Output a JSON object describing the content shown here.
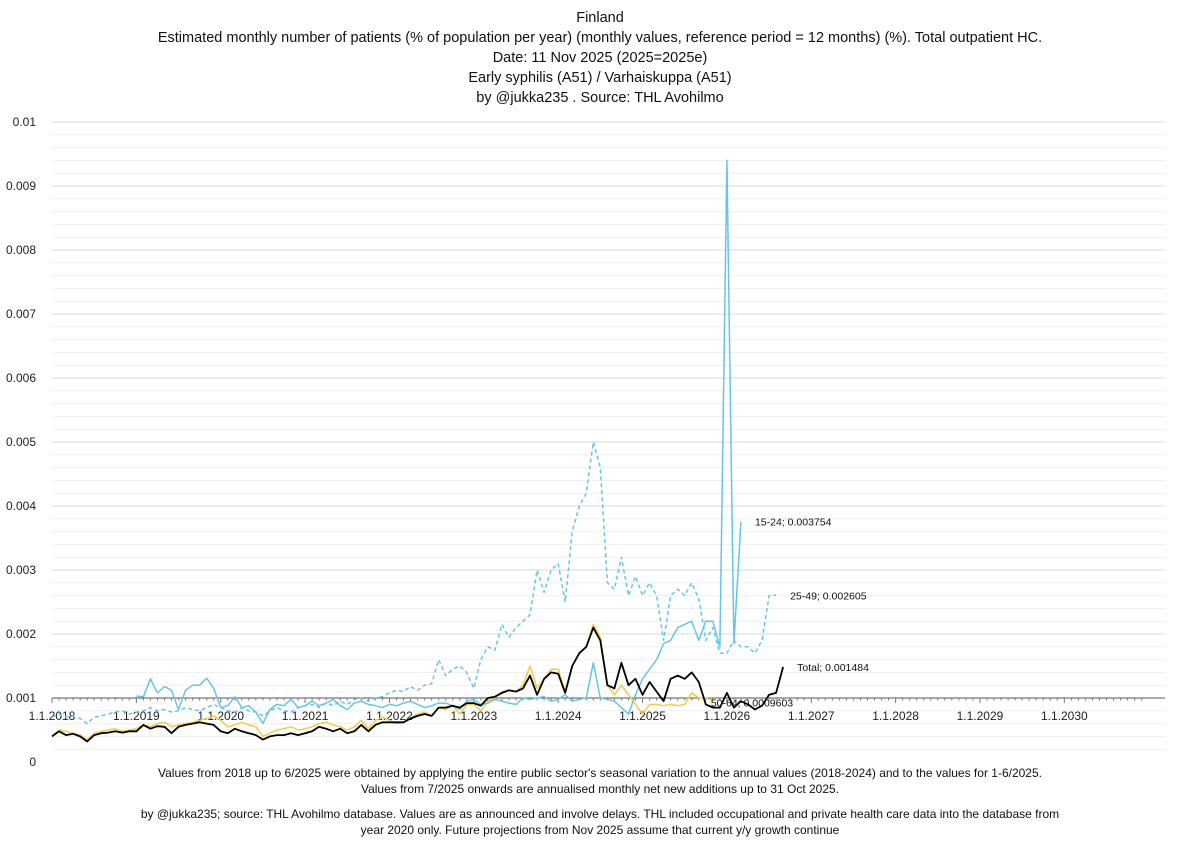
{
  "chart_data": {
    "type": "line",
    "title_lines": [
      "Finland",
      "Estimated monthly number of patients  (% of population per year) (monthly values, reference period = 12 months) (%). Total outpatient HC.",
      "Date: 11 Nov 2025 (2025=2025e)",
      "Early syphilis (A51) / Varhaiskuppa (A51)",
      "by @jukka235 . Source: THL Avohilmo"
    ],
    "ylim": [
      0,
      0.01
    ],
    "y_ticks": [
      "0",
      "0.001",
      "0.002",
      "0.003",
      "0.004",
      "0.005",
      "0.006",
      "0.007",
      "0.008",
      "0.009",
      "0.01"
    ],
    "x_ticks": [
      "1.1.2018",
      "1.1.2019",
      "1.1.2020",
      "1.1.2021",
      "1.1.2022",
      "1.1.2023",
      "1.1.2024",
      "1.1.2025",
      "1.1.2026",
      "1.1.2027",
      "1.1.2028",
      "1.1.2029",
      "1.1.2030"
    ],
    "x_start": "1.1.2018",
    "months_span": 155,
    "series": [
      {
        "name": "15-24",
        "color": "#66c5e6",
        "dash": "solid",
        "start_month": 12,
        "values": [
          0.00103,
          0.00102,
          0.0013,
          0.00108,
          0.00118,
          0.00112,
          0.00082,
          0.00112,
          0.0012,
          0.0012,
          0.00131,
          0.00115,
          0.00085,
          0.00088,
          0.00102,
          0.00085,
          0.00088,
          0.00078,
          0.0006,
          0.00082,
          0.0009,
          0.00088,
          0.00098,
          0.00085,
          0.00088,
          0.00095,
          0.00088,
          0.00092,
          0.00098,
          0.00088,
          0.00082,
          0.00092,
          0.00095,
          0.0009,
          0.00088,
          0.00085,
          0.0009,
          0.00088,
          0.00092,
          0.00095,
          0.0009,
          0.00085,
          0.00088,
          0.00092,
          0.00092,
          0.00088,
          0.00082,
          0.00095,
          0.00098,
          0.0009,
          0.00092,
          0.00098,
          0.00095,
          0.00092,
          0.0009,
          0.001,
          0.00098,
          0.001,
          0.00102,
          0.00095,
          0.00098,
          0.00105,
          0.00095,
          0.00098,
          0.001,
          0.00155,
          0.001,
          0.00098,
          0.00095,
          0.00085,
          0.00075,
          0.00105,
          0.0013,
          0.00145,
          0.0016,
          0.00185,
          0.0019,
          0.0021,
          0.00215,
          0.0022,
          0.0019,
          0.0022,
          0.0022,
          0.0018,
          0.0094,
          0.00185,
          0.003754
        ]
      },
      {
        "name": "25-49",
        "color": "#66c5e6",
        "dash": "dashed",
        "start_month": 0,
        "values": [
          0.0007,
          0.00075,
          0.0007,
          0.00072,
          0.00068,
          0.0006,
          0.0007,
          0.00072,
          0.00075,
          0.00078,
          0.0008,
          0.00075,
          0.00078,
          0.0008,
          0.00085,
          0.0008,
          0.00082,
          0.00078,
          0.0008,
          0.00085,
          0.00082,
          0.0008,
          0.00085,
          0.0009,
          0.00085,
          0.0008,
          0.00078,
          0.00085,
          0.0008,
          0.00078,
          0.00072,
          0.0008,
          0.00085,
          0.0008,
          0.00078,
          0.00085,
          0.00088,
          0.0009,
          0.00085,
          0.00092,
          0.00088,
          0.00095,
          0.0009,
          0.00098,
          0.001,
          0.00095,
          0.001,
          0.00102,
          0.00108,
          0.00112,
          0.0011,
          0.00118,
          0.00112,
          0.0012,
          0.00122,
          0.0016,
          0.00135,
          0.00145,
          0.0015,
          0.0014,
          0.00115,
          0.0016,
          0.0018,
          0.00175,
          0.00215,
          0.00195,
          0.0021,
          0.0022,
          0.0023,
          0.003,
          0.00265,
          0.003,
          0.0031,
          0.0025,
          0.0036,
          0.004,
          0.0042,
          0.005,
          0.0046,
          0.0028,
          0.0027,
          0.0032,
          0.0026,
          0.0029,
          0.0026,
          0.0028,
          0.0026,
          0.0019,
          0.0026,
          0.0027,
          0.0026,
          0.0028,
          0.00255,
          0.0019,
          0.0021,
          0.0017,
          0.0017,
          0.0019,
          0.0018,
          0.0018,
          0.0017,
          0.0019,
          0.0026,
          0.002605
        ]
      },
      {
        "name": "50-64",
        "color": "#f2cc44",
        "dash": "solid",
        "start_month": 0,
        "values": [
          0.0004,
          0.0005,
          0.00048,
          0.00045,
          0.00042,
          0.00035,
          0.00045,
          0.00048,
          0.0005,
          0.00052,
          0.00048,
          0.0005,
          0.00052,
          0.00058,
          0.00055,
          0.0006,
          0.00062,
          0.00055,
          0.00058,
          0.0006,
          0.00062,
          0.00065,
          0.00068,
          0.00072,
          0.00065,
          0.00055,
          0.00058,
          0.00062,
          0.00058,
          0.00055,
          0.0004,
          0.00045,
          0.0005,
          0.00052,
          0.00055,
          0.0005,
          0.00052,
          0.00055,
          0.0006,
          0.00062,
          0.00058,
          0.00055,
          0.0005,
          0.00055,
          0.00065,
          0.00052,
          0.00065,
          0.0007,
          0.00065,
          0.0006,
          0.00062,
          0.00068,
          0.00075,
          0.00078,
          0.00072,
          0.00085,
          0.00082,
          0.00088,
          0.00075,
          0.0009,
          0.0009,
          0.0008,
          0.00095,
          0.001,
          0.0011,
          0.00112,
          0.0011,
          0.0012,
          0.0015,
          0.00115,
          0.0013,
          0.00145,
          0.00145,
          0.0011,
          0.0015,
          0.0017,
          0.0018,
          0.00215,
          0.00195,
          0.0012,
          0.00105,
          0.0012,
          0.00105,
          0.0009,
          0.00075,
          0.0009,
          0.0009,
          0.00088,
          0.0009,
          0.00088,
          0.0009,
          0.00108,
          0.001,
          0.001,
          0.0009603
        ]
      },
      {
        "name": "Total",
        "color": "#000000",
        "dash": "solid",
        "start_month": 0,
        "values": [
          0.0004,
          0.00048,
          0.00042,
          0.00044,
          0.0004,
          0.00032,
          0.00042,
          0.00045,
          0.00046,
          0.00048,
          0.00046,
          0.00048,
          0.00048,
          0.00058,
          0.00052,
          0.00056,
          0.00055,
          0.00045,
          0.00055,
          0.00058,
          0.0006,
          0.00062,
          0.0006,
          0.00058,
          0.00048,
          0.00045,
          0.00052,
          0.00048,
          0.00045,
          0.00042,
          0.00035,
          0.0004,
          0.00042,
          0.00042,
          0.00045,
          0.00042,
          0.00045,
          0.00048,
          0.00055,
          0.00052,
          0.00048,
          0.00052,
          0.00045,
          0.00048,
          0.00058,
          0.00048,
          0.00058,
          0.00062,
          0.00062,
          0.00062,
          0.00062,
          0.00068,
          0.00072,
          0.00075,
          0.00072,
          0.00085,
          0.00085,
          0.00088,
          0.00085,
          0.00092,
          0.00092,
          0.00088,
          0.001,
          0.00102,
          0.00108,
          0.00112,
          0.0011,
          0.00115,
          0.00135,
          0.00105,
          0.0013,
          0.0014,
          0.00138,
          0.00108,
          0.0015,
          0.0017,
          0.0018,
          0.0021,
          0.0019,
          0.0012,
          0.00115,
          0.00155,
          0.0012,
          0.0013,
          0.00105,
          0.00125,
          0.0011,
          0.00095,
          0.0013,
          0.00135,
          0.0013,
          0.0014,
          0.00125,
          0.0009,
          0.00085,
          0.00085,
          0.00108,
          0.00085,
          0.00095,
          0.0009,
          0.00082,
          0.00088,
          0.00105,
          0.00108,
          0.001484
        ]
      }
    ],
    "data_labels": [
      {
        "series": "15-24",
        "text": "15-24; 0.003754"
      },
      {
        "series": "25-49",
        "text": "25-49; 0.002605"
      },
      {
        "series": "Total",
        "text": "Total; 0.001484"
      },
      {
        "series": "50-64",
        "text": "50-64; 0.0009603"
      }
    ],
    "notes": [
      "Values from 2018 up to 6/2025 were obtained by applying the entire public sector's seasonal variation to the annual values (2018-2024) and to the values for 1-6/2025.",
      "Values from 7/2025 onwards are annualised monthly net new additions up to 31 Oct 2025.",
      "by @jukka235; source: THL Avohilmo database. Values are as announced and involve delays. THL included occupational and private health care data into the database from",
      "year 2020 only. Future projections from Nov 2025 assume that current y/y growth continue"
    ]
  }
}
